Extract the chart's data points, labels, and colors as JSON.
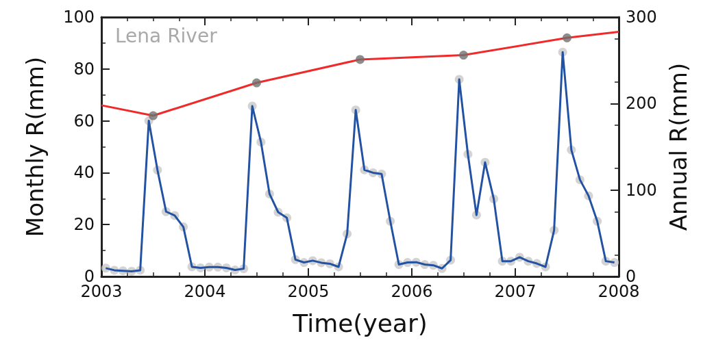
{
  "chart_data": {
    "type": "line",
    "xlabel": "Time(year)",
    "ylabel": "Monthly R(mm)",
    "y2label": "Annual R(mm)",
    "annotations": [
      "Lena River"
    ],
    "xlim": [
      2003,
      2008
    ],
    "xticks": [
      2003,
      2004,
      2005,
      2006,
      2007,
      2008
    ],
    "ylim": [
      0,
      100
    ],
    "yticks": [
      0,
      20,
      40,
      60,
      80,
      100
    ],
    "y2lim": [
      0,
      300
    ],
    "y2ticks": [
      0,
      100,
      200,
      300
    ],
    "grid": false,
    "series": [
      {
        "type": "scatter",
        "color": "#c8c8c8",
        "marker": "circle",
        "x": [
          2003.042,
          2003.125,
          2003.208,
          2003.292,
          2003.375,
          2003.458,
          2003.542,
          2003.625,
          2003.708,
          2003.792,
          2003.875,
          2003.958,
          2004.042,
          2004.125,
          2004.208,
          2004.292,
          2004.375,
          2004.458,
          2004.542,
          2004.625,
          2004.708,
          2004.792,
          2004.875,
          2004.958,
          2005.042,
          2005.125,
          2005.208,
          2005.292,
          2005.375,
          2005.458,
          2005.542,
          2005.625,
          2005.708,
          2005.792,
          2005.875,
          2005.958,
          2006.042,
          2006.125,
          2006.208,
          2006.292,
          2006.375,
          2006.458,
          2006.542,
          2006.625,
          2006.708,
          2006.792,
          2006.875,
          2006.958,
          2007.042,
          2007.125,
          2007.208,
          2007.292,
          2007.375,
          2007.458,
          2007.542,
          2007.625,
          2007.708,
          2007.792,
          2007.875,
          2007.958
        ],
        "values": [
          3.2,
          2.4,
          2.2,
          2.0,
          2.4,
          60,
          41,
          25,
          23.5,
          19.1,
          3.7,
          3.3,
          3.6,
          3.6,
          3.3,
          2.5,
          3.0,
          65.7,
          51.8,
          31.8,
          24.8,
          22.6,
          6.5,
          5.4,
          6.1,
          5.3,
          4.9,
          3.7,
          16.4,
          64.2,
          41.1,
          40,
          39.5,
          21.3,
          4.6,
          5.4,
          5.5,
          4.6,
          4.3,
          3.1,
          6.3,
          76,
          47.1,
          23.7,
          44,
          29.9,
          5.9,
          5.9,
          7.4,
          5.9,
          5,
          3.7,
          17.8,
          86.5,
          48.8,
          37.3,
          31.1,
          21.3,
          5.9,
          5.4
        ]
      },
      {
        "color": "#2352a3",
        "marker": "none",
        "x": [
          2003.042,
          2003.125,
          2003.208,
          2003.292,
          2003.375,
          2003.458,
          2003.542,
          2003.625,
          2003.708,
          2003.792,
          2003.875,
          2003.958,
          2004.042,
          2004.125,
          2004.208,
          2004.292,
          2004.375,
          2004.458,
          2004.542,
          2004.625,
          2004.708,
          2004.792,
          2004.875,
          2004.958,
          2005.042,
          2005.125,
          2005.208,
          2005.292,
          2005.375,
          2005.458,
          2005.542,
          2005.625,
          2005.708,
          2005.792,
          2005.875,
          2005.958,
          2006.042,
          2006.125,
          2006.208,
          2006.292,
          2006.375,
          2006.458,
          2006.542,
          2006.625,
          2006.708,
          2006.792,
          2006.875,
          2006.958,
          2007.042,
          2007.125,
          2007.208,
          2007.292,
          2007.375,
          2007.458,
          2007.542,
          2007.625,
          2007.708,
          2007.792,
          2007.875,
          2007.958
        ],
        "values": [
          3.2,
          2.4,
          2.2,
          2.0,
          2.4,
          60,
          41,
          25,
          23.5,
          19.1,
          3.7,
          3.3,
          3.6,
          3.6,
          3.3,
          2.5,
          3.0,
          65.7,
          51.8,
          31.8,
          24.8,
          22.6,
          6.5,
          5.4,
          6.1,
          5.3,
          4.9,
          3.7,
          16.4,
          64.2,
          41.1,
          40,
          39.5,
          21.3,
          4.6,
          5.4,
          5.5,
          4.6,
          4.3,
          3.1,
          6.3,
          76,
          47.1,
          23.7,
          44,
          29.9,
          5.9,
          5.9,
          7.4,
          5.9,
          5,
          3.7,
          17.8,
          86.5,
          48.8,
          37.3,
          31.1,
          21.3,
          5.9,
          5.4
        ]
      },
      {
        "axis": "y2",
        "color": "#ee2a2a",
        "marker": "none",
        "x": [
          2003,
          2003.5,
          2004.5,
          2005.5,
          2006.5,
          2007.5,
          2008
        ],
        "values": [
          198,
          186,
          224,
          251,
          256,
          276,
          283
        ]
      },
      {
        "type": "scatter",
        "axis": "y2",
        "color": "#707070",
        "marker": "circle",
        "x": [
          2003.5,
          2004.5,
          2005.5,
          2006.5,
          2007.5
        ],
        "values": [
          186,
          224,
          251,
          256,
          276
        ]
      }
    ]
  }
}
